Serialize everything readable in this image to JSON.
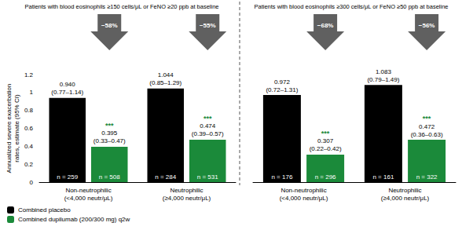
{
  "chart_data": {
    "type": "bar",
    "ylabel": "Annualized severe exacerbation\nrates, estimate (95% CI)",
    "ylim": [
      0,
      1.2
    ],
    "yticks": [
      0,
      0.2,
      0.4,
      0.6,
      0.8,
      1,
      1.2
    ],
    "grid": false,
    "legend": "bottom-left",
    "data_labels": true,
    "series": [
      {
        "name": "Combined placebo",
        "color": "#000000"
      },
      {
        "name": "Combined dupilumab (200/300 mg) q2w",
        "color": "#1b8a3a"
      }
    ],
    "panels": [
      {
        "title": "Patients with blood eosinophils ≥150 cells/μL or FeNO ≥20 ppb at baseline",
        "categories": [
          "Non-neutrophilic\n(<4,000 neutr/μL)",
          "Neutrophilic\n(≥4,000 neutr/μL)"
        ],
        "data": [
          {
            "values": [
              0.94,
              1.044
            ],
            "value_labels": [
              "0.940",
              "1.044"
            ],
            "ci_labels": [
              "(0.77–1.14)",
              "(0.85–1.29)"
            ],
            "n_labels": [
              "n = 259",
              "n = 284"
            ]
          },
          {
            "values": [
              0.395,
              0.474
            ],
            "value_labels": [
              "0.395",
              "0.474"
            ],
            "ci_labels": [
              "(0.33–0.47)",
              "(0.39–0.57)"
            ],
            "n_labels": [
              "n = 508",
              "n = 531"
            ],
            "significance": [
              "***",
              "***"
            ]
          }
        ],
        "reduction_labels": [
          "−58%",
          "−55%"
        ]
      },
      {
        "title": "Patients with blood eosinophils ≥300 cells/μL or FeNO ≥50 ppb at baseline",
        "categories": [
          "Non-neutrophilic\n(<4,000 neutr/μL)",
          "Neutrophilic\n(≥4,000 neutr/μL)"
        ],
        "data": [
          {
            "values": [
              0.972,
              1.083
            ],
            "value_labels": [
              "0.972",
              "1.083"
            ],
            "ci_labels": [
              "(0.72–1.31)",
              "(0.79–1.49)"
            ],
            "n_labels": [
              "n = 176",
              "n = 161"
            ]
          },
          {
            "values": [
              0.307,
              0.472
            ],
            "value_labels": [
              "0.307",
              "0.472"
            ],
            "ci_labels": [
              "(0.22–0.42)",
              "(0.36–0.63)"
            ],
            "n_labels": [
              "n = 296",
              "n = 322"
            ],
            "significance": [
              "***",
              "***"
            ]
          }
        ],
        "reduction_labels": [
          "−68%",
          "−56%"
        ]
      }
    ]
  }
}
